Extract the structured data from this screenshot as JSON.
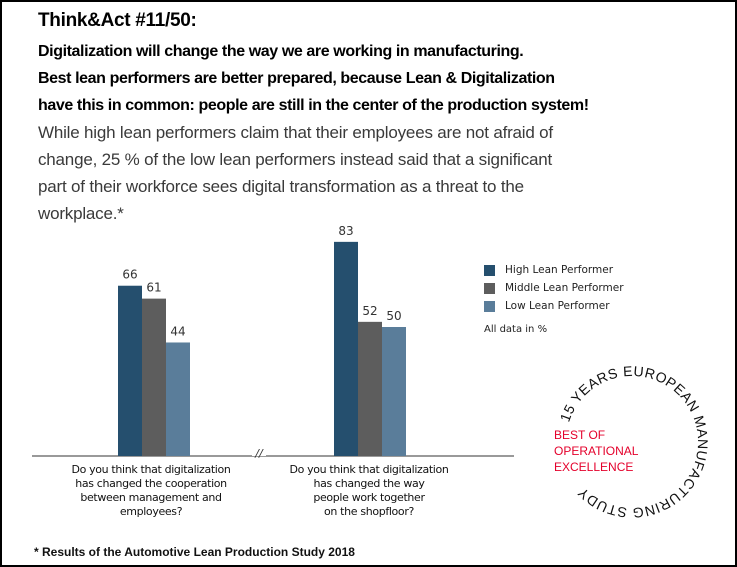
{
  "heading": {
    "title": "Think&Act #11/50:",
    "lines": [
      "Digitalization will change the way we are working in manufacturing.",
      "Best lean performers are better prepared, because Lean & Digitalization",
      "have this in common: people are still in the center of the production system!"
    ]
  },
  "body_lines": [
    "While high lean performers claim that their employees are not afraid of",
    "change, 25 % of the low lean performers instead said that a significant",
    "part of their workforce sees digital transformation as a threat to the",
    "workplace.*"
  ],
  "chart_data": {
    "type": "bar",
    "categories": [
      "Do you think that digitalization has changed the cooperation between management and employees?",
      "Do you think that digitalization has changed the way people work together on the shopfloor?"
    ],
    "category_lines": [
      [
        "Do you think that digitalization",
        "has changed the cooperation",
        "between management and",
        "employees?"
      ],
      [
        "Do you think that digitalization",
        "has changed the way",
        "people work together",
        "on the shopfloor?"
      ]
    ],
    "series": [
      {
        "name": "High Lean Performer",
        "values": [
          66,
          83
        ],
        "color": "#254f6e"
      },
      {
        "name": "Middle Lean Performer",
        "values": [
          61,
          52
        ],
        "color": "#5d5d5d"
      },
      {
        "name": "Low Lean Performer",
        "values": [
          44,
          50
        ],
        "color": "#5a7d9a"
      }
    ],
    "axis_break": "//",
    "note": "All data in %",
    "legend_position": "right",
    "grid": false
  },
  "badge": {
    "ring_text": "15 YEARS EUROPEAN MANUFACTURING STUDY",
    "center_lines": [
      "BEST OF",
      "OPERATIONAL",
      "EXCELLENCE"
    ],
    "accent": "#e4002b"
  },
  "footnote": "* Results of the Automotive Lean Production Study 2018"
}
